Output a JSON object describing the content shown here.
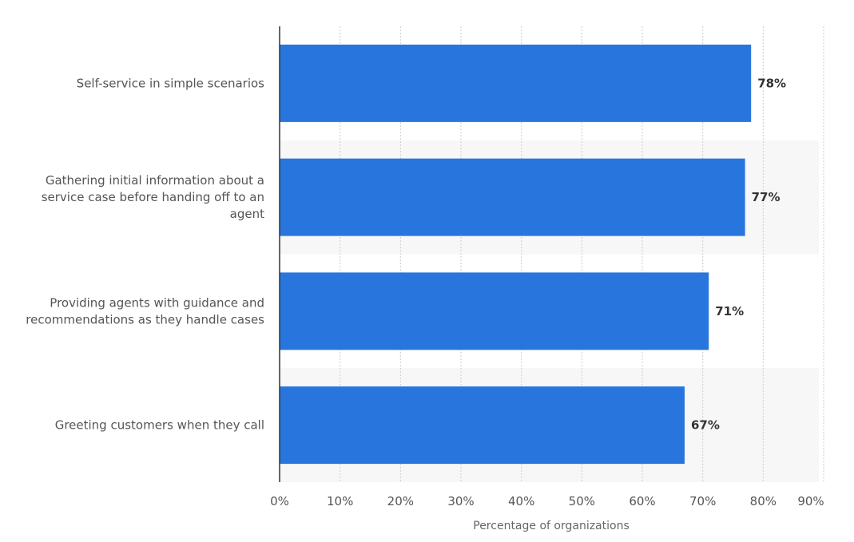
{
  "chart_data": {
    "type": "bar",
    "orientation": "horizontal",
    "categories": [
      "Self-service in simple scenarios",
      "Gathering initial information about a service case before handing off to an agent",
      "Providing agents with guidance and recommendations as they handle cases",
      "Greeting customers when they call"
    ],
    "category_label_lines": [
      [
        "Self-service in simple scenarios"
      ],
      [
        "Gathering initial information about a",
        "service case before handing off to an",
        "agent"
      ],
      [
        "Providing agents with guidance and",
        "recommendations as they handle cases"
      ],
      [
        "Greeting customers when they call"
      ]
    ],
    "values": [
      78,
      77,
      71,
      67
    ],
    "value_labels": [
      "78%",
      "77%",
      "71%",
      "67%"
    ],
    "xlim": [
      0,
      90
    ],
    "x_ticks": [
      0,
      10,
      20,
      30,
      40,
      50,
      60,
      70,
      80,
      90
    ],
    "x_tick_labels": [
      "0%",
      "10%",
      "20%",
      "30%",
      "40%",
      "50%",
      "60%",
      "70%",
      "80%",
      "90%"
    ],
    "xlabel": "Percentage of organizations",
    "ylabel": "",
    "title": "",
    "grid": true,
    "colors": {
      "bar": "#2876dd",
      "band": "#f7f7f7",
      "grid": "#cccccc",
      "axis": "#333333"
    }
  }
}
